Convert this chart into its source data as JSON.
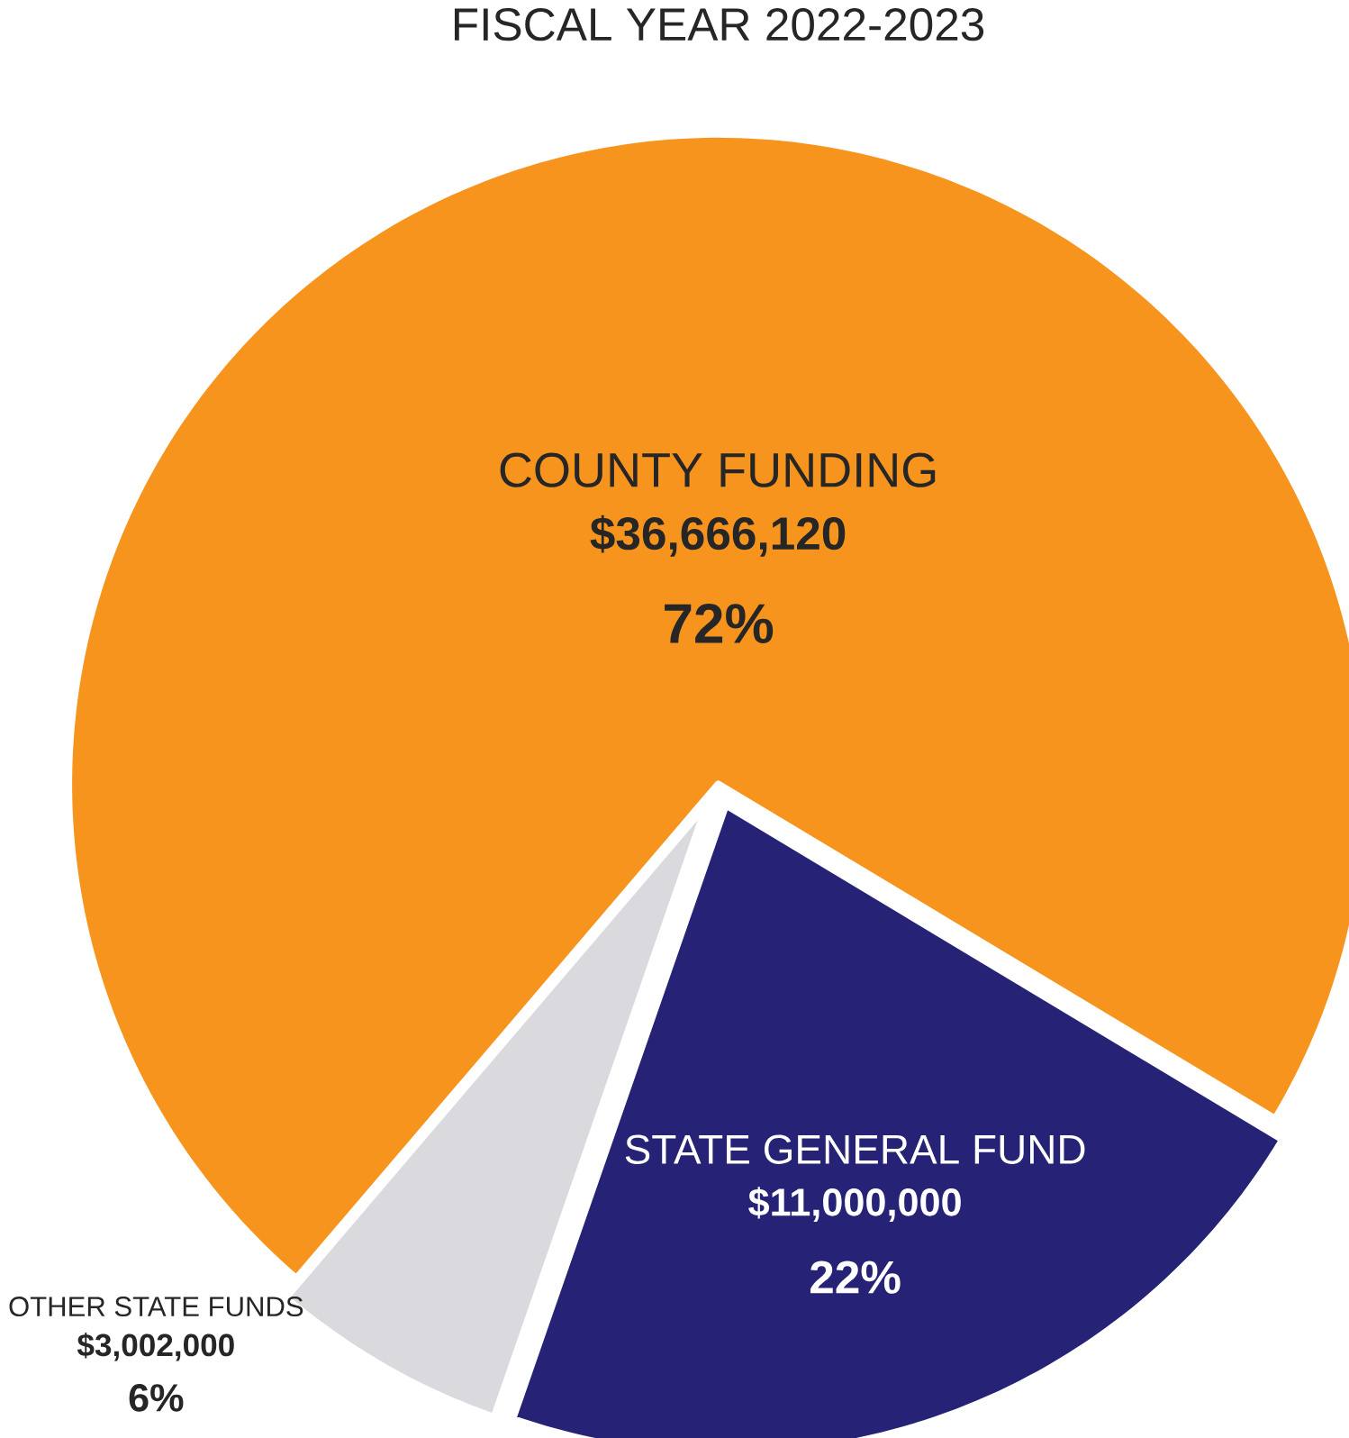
{
  "chart_data": {
    "type": "pie",
    "title": "FISCAL YEAR 2022-2023",
    "categories": [
      "COUNTY FUNDING",
      "OTHER STATE FUNDS",
      "STATE GENERAL FUND"
    ],
    "values": [
      36666120,
      3002000,
      11000000
    ],
    "colors": [
      "#f7941e",
      "#d9d9de",
      "#262376"
    ],
    "value_labels": [
      "$36,666,120",
      "$3,002,000",
      "$11,000,000"
    ],
    "annotations": [
      "72%",
      "6%",
      "22%"
    ]
  }
}
